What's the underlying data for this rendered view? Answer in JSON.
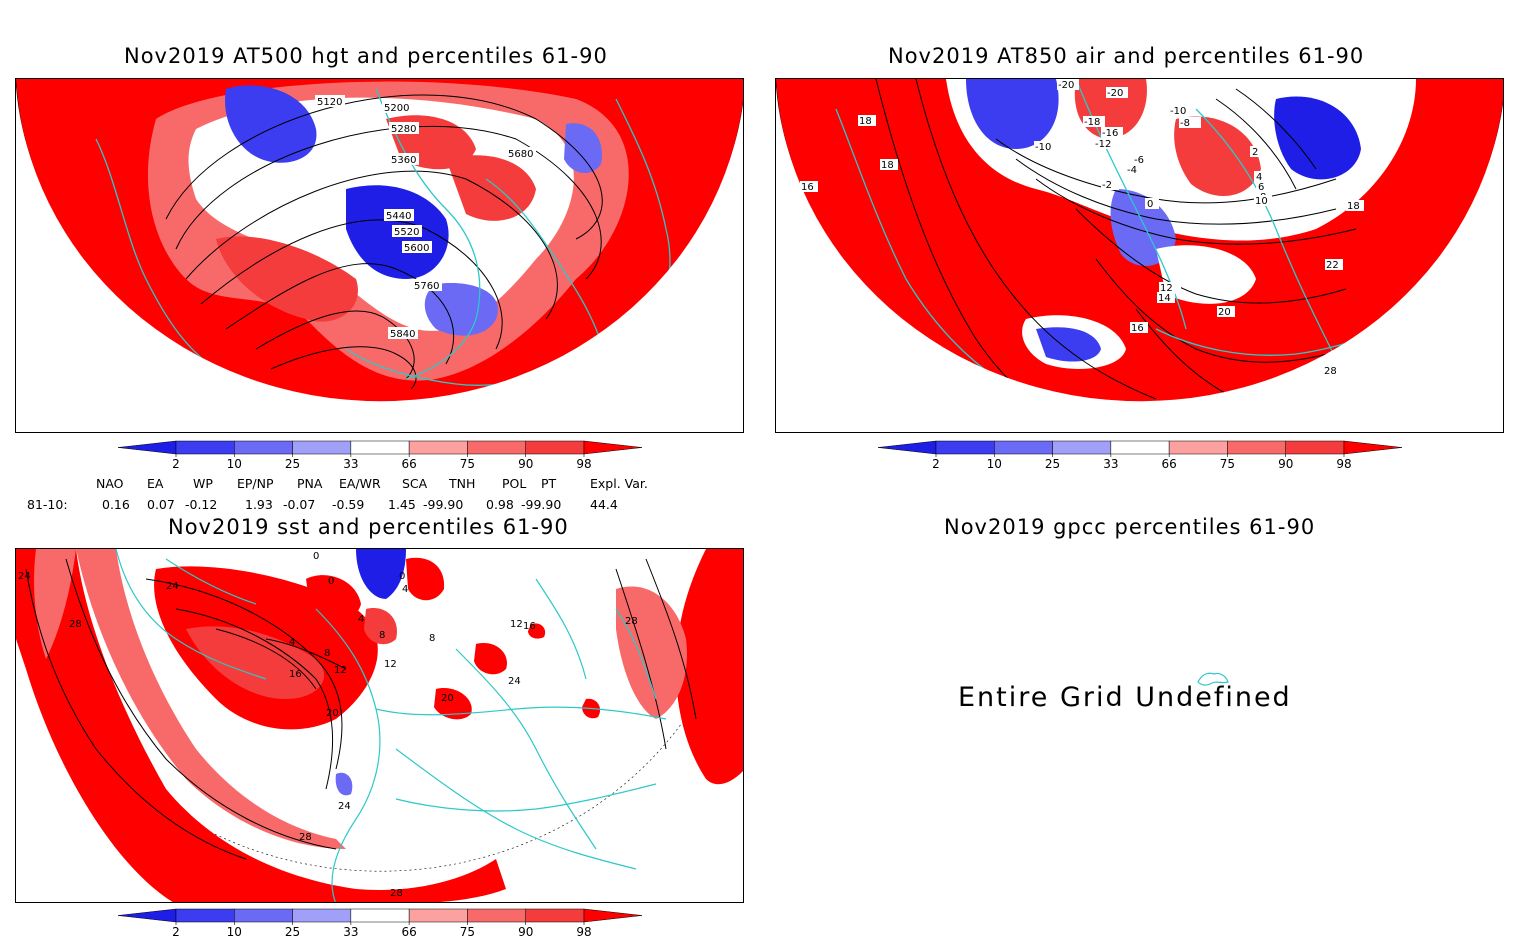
{
  "panels": {
    "hgt": {
      "title": "Nov2019 AT500 hgt and percentiles 61-90",
      "contours": [
        "5120",
        "5200",
        "5280",
        "5360",
        "5440",
        "5520",
        "5600",
        "5680",
        "5760",
        "5840"
      ]
    },
    "air": {
      "title": "Nov2019 AT850 air and percentiles 61-90",
      "contours": [
        "-20",
        "-20",
        "-18",
        "-16",
        "-12",
        "-10",
        "-10",
        "-8",
        "-6",
        "-4",
        "-2",
        "0",
        "2",
        "4",
        "6",
        "8",
        "10",
        "12",
        "14",
        "16",
        "16",
        "18",
        "18",
        "18",
        "20",
        "22",
        "28"
      ]
    },
    "sst": {
      "title": "Nov2019 sst and percentiles 61-90",
      "contours": [
        "0",
        "0",
        "0",
        "4",
        "4",
        "4",
        "8",
        "8",
        "8",
        "12",
        "12",
        "12",
        "16",
        "16",
        "20",
        "20",
        "24",
        "24",
        "24",
        "24",
        "28",
        "28",
        "28",
        "28"
      ]
    },
    "gpcc": {
      "title": "Nov2019 gpcc percentiles 61-90",
      "message": "Entire Grid Undefined"
    }
  },
  "colorbar": {
    "labels": [
      "2",
      "10",
      "25",
      "33",
      "66",
      "75",
      "90",
      "98"
    ],
    "colors": [
      "#1e1ee6",
      "#3c3cf0",
      "#6a6af5",
      "#a0a0f8",
      "#ffffff",
      "#fca0a0",
      "#f86a6a",
      "#f43c3c",
      "#ff0000"
    ]
  },
  "indices": {
    "headers": [
      "NAO",
      "EA",
      "WP",
      "EP/NP",
      "PNA",
      "EA/WR",
      "SCA",
      "TNH",
      "POL",
      "PT",
      "Expl. Var."
    ],
    "row_label": "81-10:",
    "values": [
      "0.16",
      "0.07",
      "-0.12",
      "1.93",
      "-0.07",
      "-0.59",
      "1.45",
      "-99.90",
      "0.98",
      "-99.90",
      "44.4"
    ]
  }
}
